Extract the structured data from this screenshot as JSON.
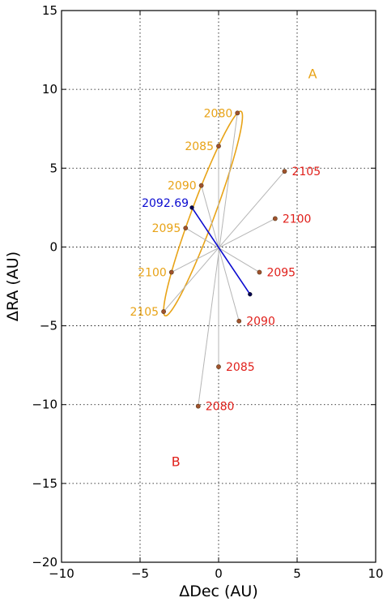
{
  "chart_data": {
    "type": "scatter",
    "xlabel": "ΔDec (AU)",
    "ylabel": "ΔRA (AU)",
    "xlim": [
      -10,
      10
    ],
    "ylim": [
      -20,
      15
    ],
    "x_ticks": [
      -10,
      -5,
      0,
      5,
      10
    ],
    "y_ticks": [
      -20,
      -15,
      -10,
      -5,
      0,
      5,
      10,
      15
    ],
    "x_tick_labels": [
      "−10",
      "−5",
      "0",
      "5",
      "10"
    ],
    "y_tick_labels": [
      "−20",
      "−15",
      "−10",
      "−5",
      "0",
      "5",
      "10",
      "15"
    ],
    "grid": true,
    "colors": {
      "A": "#e8a317",
      "B": "#e0201b",
      "line": "#0a0ad0",
      "spoke": "#b5b5b5",
      "marker": "#a0522d"
    },
    "series": [
      {
        "name": "A",
        "label_pos": {
          "x": 5.7,
          "y": 11.0
        },
        "points": [
          {
            "label": "2080",
            "x": 1.2,
            "y": 8.5
          },
          {
            "label": "2085",
            "x": 0.0,
            "y": 6.4
          },
          {
            "label": "2090",
            "x": -1.1,
            "y": 3.9
          },
          {
            "label": "2095",
            "x": -2.1,
            "y": 1.2
          },
          {
            "label": "2100",
            "x": -3.0,
            "y": -1.6
          },
          {
            "label": "2105",
            "x": -3.5,
            "y": -4.1
          }
        ]
      },
      {
        "name": "B",
        "label_pos": {
          "x": -3.0,
          "y": -13.6
        },
        "points": [
          {
            "label": "2080",
            "x": -1.3,
            "y": -10.1
          },
          {
            "label": "2085",
            "x": 0.0,
            "y": -7.6
          },
          {
            "label": "2090",
            "x": 1.3,
            "y": -4.7
          },
          {
            "label": "2095",
            "x": 2.6,
            "y": -1.6
          },
          {
            "label": "2100",
            "x": 3.6,
            "y": 1.8
          },
          {
            "label": "2105",
            "x": 4.2,
            "y": 4.8
          }
        ]
      }
    ],
    "highlight": {
      "label": "2092.69",
      "A": {
        "x": -1.7,
        "y": 2.5
      },
      "B": {
        "x": 2.0,
        "y": -3.0
      }
    }
  }
}
